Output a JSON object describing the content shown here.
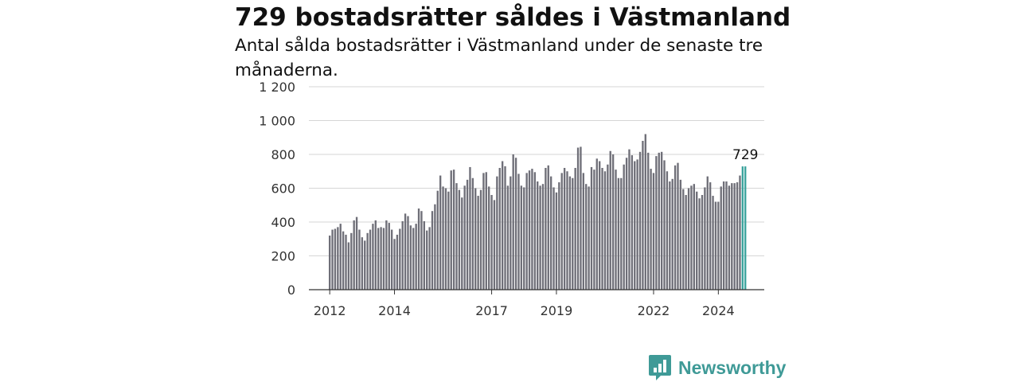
{
  "header": {
    "title": "729 bostadsrätter såldes i Västmanland",
    "subtitle": "Antal sålda bostadsrätter i Västmanland under de senaste tre månaderna."
  },
  "brand": {
    "name": "Newsworthy",
    "icon": "newsworthy-logo-icon",
    "color": "#3f9a97"
  },
  "colors": {
    "bar": "#6f6f78",
    "highlight": "#3aa39d",
    "grid": "#d6d6d6",
    "axis": "#333333"
  },
  "chart_data": {
    "type": "bar",
    "title": "729 bostadsrätter såldes i Västmanland",
    "subtitle": "Antal sålda bostadsrätter i Västmanland under de senaste tre månaderna.",
    "xlabel": "",
    "ylabel": "",
    "ylim": [
      0,
      1200
    ],
    "yticks": [
      0,
      200,
      400,
      600,
      800,
      1000,
      1200
    ],
    "ytick_labels": [
      "0",
      "200",
      "400",
      "600",
      "800",
      "1 000",
      "1 200"
    ],
    "xtick_labels": [
      "2012",
      "2014",
      "2017",
      "2019",
      "2022",
      "2024"
    ],
    "grid": true,
    "legend": "none",
    "highlight_last": 2,
    "last_value_label": "729",
    "values": [
      320,
      355,
      360,
      370,
      390,
      345,
      325,
      280,
      335,
      410,
      430,
      355,
      310,
      290,
      335,
      355,
      390,
      410,
      365,
      370,
      365,
      410,
      395,
      355,
      300,
      325,
      360,
      405,
      450,
      435,
      380,
      365,
      390,
      480,
      465,
      405,
      350,
      370,
      465,
      505,
      585,
      675,
      610,
      600,
      580,
      705,
      710,
      630,
      590,
      545,
      615,
      650,
      725,
      660,
      600,
      555,
      590,
      690,
      695,
      610,
      560,
      530,
      670,
      720,
      760,
      730,
      615,
      670,
      800,
      780,
      685,
      615,
      605,
      690,
      705,
      715,
      695,
      640,
      615,
      625,
      720,
      735,
      670,
      605,
      575,
      635,
      690,
      720,
      700,
      670,
      660,
      720,
      840,
      845,
      690,
      625,
      610,
      725,
      710,
      775,
      760,
      720,
      700,
      740,
      820,
      800,
      710,
      660,
      660,
      740,
      780,
      830,
      795,
      760,
      770,
      815,
      880,
      920,
      810,
      715,
      690,
      790,
      810,
      815,
      765,
      700,
      640,
      655,
      735,
      750,
      650,
      595,
      560,
      600,
      615,
      625,
      580,
      540,
      560,
      605,
      670,
      635,
      555,
      520,
      520,
      610,
      640,
      640,
      615,
      630,
      630,
      635,
      675,
      729,
      729
    ]
  }
}
